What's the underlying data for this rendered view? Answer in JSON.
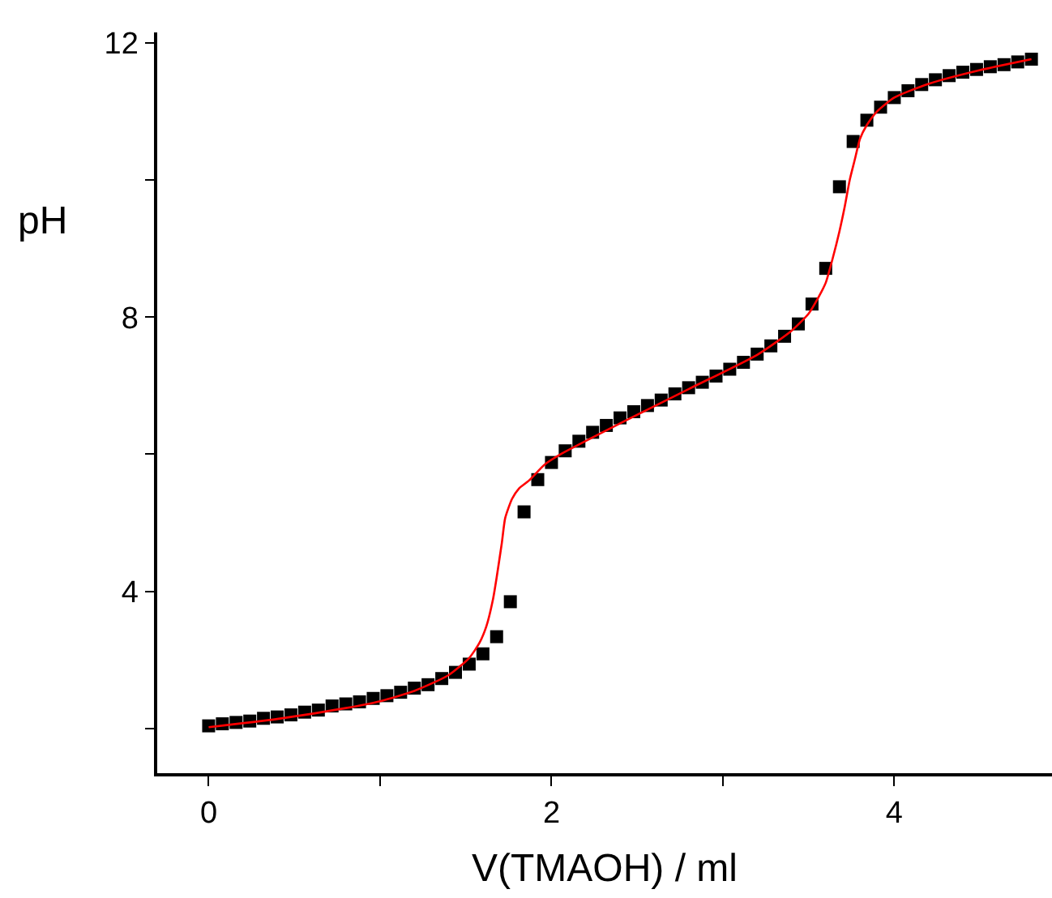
{
  "chart_data": {
    "type": "scatter",
    "xlabel": "V(TMAOH) / ml",
    "ylabel": "pH",
    "xlim": [
      -0.3,
      4.92
    ],
    "ylim": [
      1.35,
      12.15
    ],
    "xticks": [
      0,
      {
        "value": 1,
        "label": null
      },
      2,
      {
        "value": 3,
        "label": null
      },
      4
    ],
    "yticks": [
      {
        "value": 2,
        "label": null
      },
      4,
      {
        "value": 6,
        "label": null
      },
      8,
      {
        "value": 10,
        "label": null
      },
      12
    ],
    "series": [
      {
        "marker": "square",
        "color": "#000000",
        "x": [
          0,
          0.08,
          0.16,
          0.24,
          0.32,
          0.4,
          0.48,
          0.56,
          0.64,
          0.72,
          0.8,
          0.88,
          0.96,
          1.04,
          1.12,
          1.2,
          1.28,
          1.36,
          1.44,
          1.52,
          1.6,
          1.68,
          1.76,
          1.84,
          1.92,
          2.0,
          2.08,
          2.16,
          2.24,
          2.32,
          2.4,
          2.48,
          2.56,
          2.64,
          2.72,
          2.8,
          2.88,
          2.96,
          3.04,
          3.12,
          3.2,
          3.28,
          3.36,
          3.44,
          3.52,
          3.6,
          3.68,
          3.76,
          3.84,
          3.92,
          4.0,
          4.08,
          4.16,
          4.24,
          4.32,
          4.4,
          4.48,
          4.56,
          4.64,
          4.72,
          4.8
        ],
        "values": [
          2.04,
          2.07,
          2.09,
          2.11,
          2.15,
          2.17,
          2.2,
          2.24,
          2.27,
          2.33,
          2.36,
          2.39,
          2.44,
          2.48,
          2.53,
          2.59,
          2.64,
          2.73,
          2.82,
          2.94,
          3.09,
          3.34,
          3.85,
          5.16,
          5.63,
          5.88,
          6.05,
          6.19,
          6.32,
          6.42,
          6.53,
          6.62,
          6.71,
          6.79,
          6.88,
          6.97,
          7.05,
          7.14,
          7.24,
          7.34,
          7.46,
          7.58,
          7.72,
          7.9,
          8.19,
          8.71,
          9.9,
          10.56,
          10.87,
          11.06,
          11.2,
          11.3,
          11.39,
          11.46,
          11.52,
          11.57,
          11.61,
          11.65,
          11.68,
          11.72,
          11.76
        ]
      },
      {
        "type": "line",
        "marker": "none",
        "line_style": "solid",
        "color": "#ff0000",
        "x": [
          0,
          0.4,
          0.8,
          1.0,
          1.2,
          1.4,
          1.52,
          1.58,
          1.62,
          1.66,
          1.68,
          1.71,
          1.73,
          1.77,
          1.81,
          1.87,
          1.96,
          2.06,
          2.4,
          2.8,
          3.2,
          3.4,
          3.5,
          3.56,
          3.6,
          3.64,
          3.68,
          3.71,
          3.74,
          3.77,
          3.8,
          3.84,
          3.9,
          4.0,
          4.2,
          4.5,
          4.8
        ],
        "values": [
          2.02,
          2.14,
          2.3,
          2.4,
          2.55,
          2.78,
          3.03,
          3.25,
          3.49,
          3.9,
          4.2,
          4.7,
          5.07,
          5.35,
          5.5,
          5.62,
          5.85,
          6.01,
          6.45,
          6.95,
          7.45,
          7.8,
          8.05,
          8.3,
          8.5,
          8.85,
          9.25,
          9.6,
          10.0,
          10.3,
          10.6,
          10.8,
          11.0,
          11.2,
          11.4,
          11.6,
          11.76
        ]
      }
    ]
  }
}
